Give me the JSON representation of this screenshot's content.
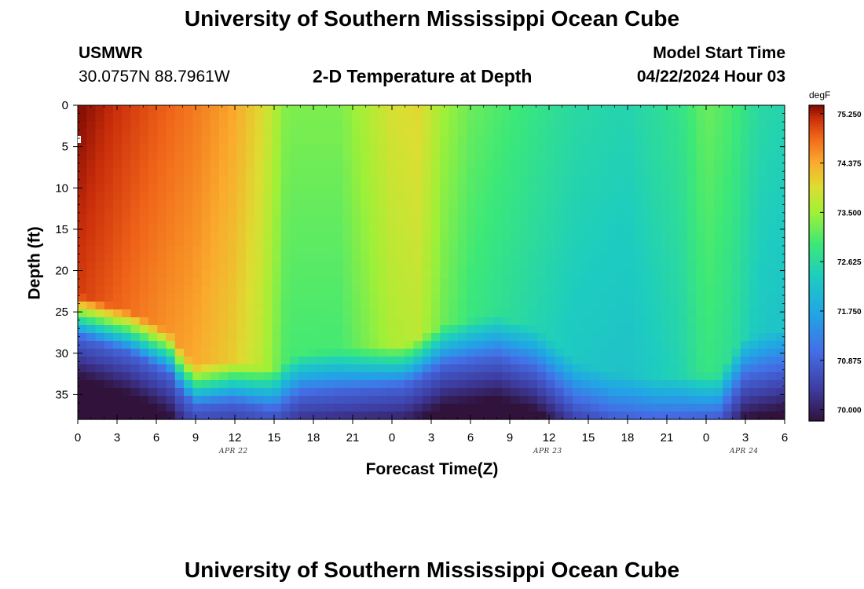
{
  "header": {
    "title": "University of Southern Mississippi Ocean Cube",
    "footer_title": "University of Southern Mississippi Ocean Cube",
    "station_id": "USMWR",
    "coords": "30.0757N  88.7961W",
    "plot_title": "2-D Temperature at Depth",
    "model_start_label": "Model Start Time",
    "model_start_value": "04/22/2024 Hour 03"
  },
  "chart_data": {
    "type": "heatmap",
    "title": "2-D Temperature at Depth",
    "xlabel": "Forecast Time(Z)",
    "ylabel": "Depth (ft)",
    "x_range_hours": [
      0,
      54
    ],
    "y_range_ft": [
      0,
      38
    ],
    "x_ticks": [
      "0",
      "3",
      "6",
      "9",
      "12",
      "15",
      "18",
      "21",
      "0",
      "3",
      "6",
      "9",
      "12",
      "15",
      "18",
      "21",
      "0",
      "3",
      "6"
    ],
    "y_ticks": [
      "0",
      "5",
      "10",
      "15",
      "20",
      "25",
      "30",
      "35"
    ],
    "y_tick_values": [
      0,
      5,
      10,
      15,
      20,
      25,
      30,
      35
    ],
    "date_labels": [
      {
        "label": "APR 22",
        "hour": 12
      },
      {
        "label": "APR 23",
        "hour": 36
      },
      {
        "label": "APR 24",
        "hour": 51
      }
    ],
    "colorbar": {
      "unit": "degF",
      "min": 69.8,
      "max": 75.4,
      "ticks": [
        "75.250",
        "74.375",
        "73.500",
        "72.625",
        "71.750",
        "70.875",
        "70.000"
      ],
      "tick_values": [
        75.25,
        74.375,
        73.5,
        72.625,
        71.75,
        70.875,
        70.0
      ]
    },
    "surface_temp_degF": [
      {
        "hour": 0,
        "value": 75.4
      },
      {
        "hour": 5,
        "value": 75.0
      },
      {
        "hour": 9,
        "value": 74.7
      },
      {
        "hour": 12,
        "value": 74.4
      },
      {
        "hour": 14,
        "value": 74.0
      },
      {
        "hour": 16,
        "value": 73.3
      },
      {
        "hour": 20,
        "value": 73.3
      },
      {
        "hour": 22,
        "value": 73.6
      },
      {
        "hour": 24,
        "value": 73.9
      },
      {
        "hour": 26,
        "value": 74.0
      },
      {
        "hour": 28,
        "value": 73.5
      },
      {
        "hour": 30,
        "value": 73.2
      },
      {
        "hour": 34,
        "value": 72.9
      },
      {
        "hour": 38,
        "value": 72.6
      },
      {
        "hour": 42,
        "value": 72.5
      },
      {
        "hour": 46,
        "value": 72.8
      },
      {
        "hour": 48,
        "value": 73.2
      },
      {
        "hour": 50,
        "value": 73.0
      },
      {
        "hour": 52,
        "value": 72.6
      },
      {
        "hour": 54,
        "value": 72.5
      }
    ],
    "mixed_layer_depth_ft": [
      {
        "hour": 0,
        "value": 26
      },
      {
        "hour": 4,
        "value": 28
      },
      {
        "hour": 7,
        "value": 30.5
      },
      {
        "hour": 8,
        "value": 33
      },
      {
        "hour": 9,
        "value": 34.5
      },
      {
        "hour": 12,
        "value": 34
      },
      {
        "hour": 15,
        "value": 35
      },
      {
        "hour": 17,
        "value": 33
      },
      {
        "hour": 21,
        "value": 32.5
      },
      {
        "hour": 25,
        "value": 32
      },
      {
        "hour": 28,
        "value": 29.5
      },
      {
        "hour": 32,
        "value": 28.5
      },
      {
        "hour": 35,
        "value": 30
      },
      {
        "hour": 38,
        "value": 34
      },
      {
        "hour": 41,
        "value": 35.5
      },
      {
        "hour": 44,
        "value": 36
      },
      {
        "hour": 49,
        "value": 35.5
      },
      {
        "hour": 51,
        "value": 31
      },
      {
        "hour": 54,
        "value": 30
      }
    ]
  }
}
